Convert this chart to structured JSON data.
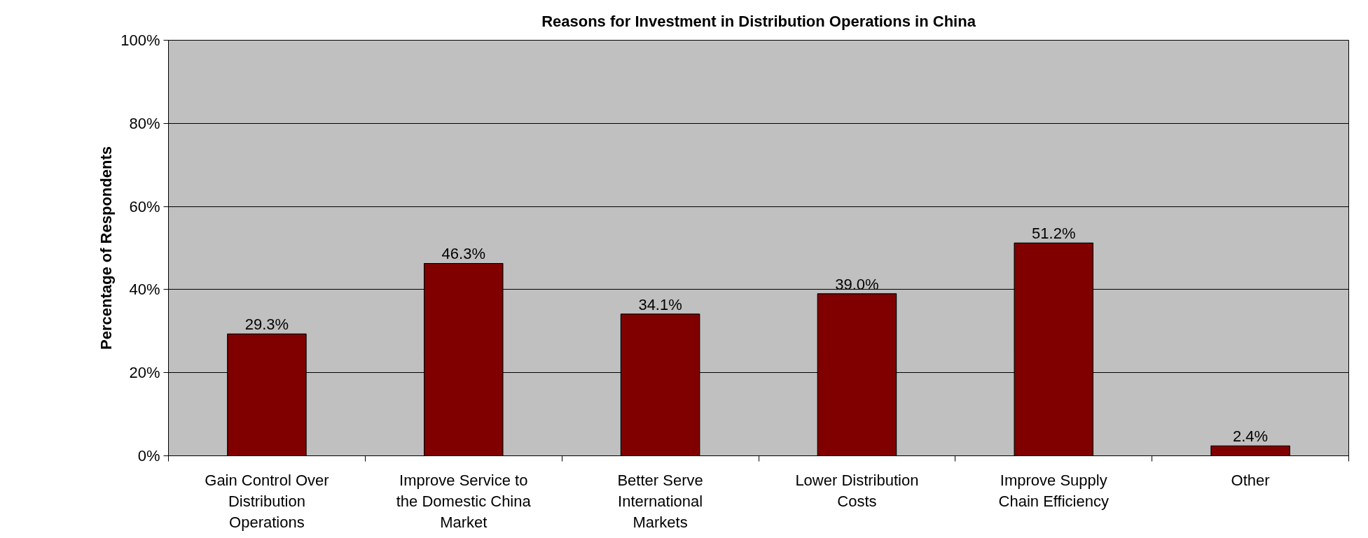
{
  "chart_data": {
    "type": "bar",
    "title": "Reasons for Investment in Distribution Operations in China",
    "ylabel": "Percentage of Respondents",
    "categories": [
      "Gain Control Over Distribution Operations",
      "Improve Service to the Domestic China Market",
      "Better Serve International Markets",
      "Lower Distribution Costs",
      "Improve Supply Chain Efficiency",
      "Other"
    ],
    "values": [
      29.3,
      46.3,
      34.1,
      39.0,
      51.2,
      2.4
    ],
    "value_labels": [
      "29.3%",
      "46.3%",
      "34.1%",
      "39.0%",
      "51.2%",
      "2.4%"
    ],
    "color": "#800000",
    "ylim": [
      0,
      100
    ],
    "yticks": [
      {
        "value": 0,
        "label": "0%"
      },
      {
        "value": 20,
        "label": "20%"
      },
      {
        "value": 40,
        "label": "40%"
      },
      {
        "value": 60,
        "label": "60%"
      },
      {
        "value": 80,
        "label": "80%"
      },
      {
        "value": 100,
        "label": "100%"
      }
    ],
    "grid": "y"
  }
}
